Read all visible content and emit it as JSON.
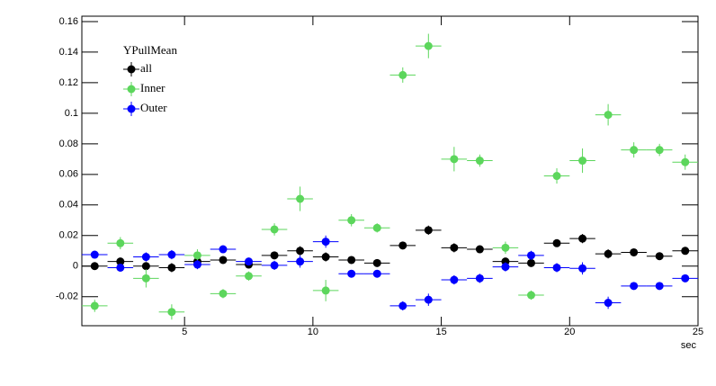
{
  "chart_data": {
    "type": "scatter",
    "xlabel": "sec",
    "legend_title": "YPullMean",
    "legend": "top-left",
    "x": [
      1.5,
      2.5,
      3.5,
      4.5,
      5.5,
      6.5,
      7.5,
      8.5,
      9.5,
      10.5,
      11.5,
      12.5,
      13.5,
      14.5,
      15.5,
      16.5,
      17.5,
      18.5,
      19.5,
      20.5,
      21.5,
      22.5,
      23.5,
      24.5
    ],
    "xerr": 0.5,
    "xlim": [
      1,
      25
    ],
    "xticks": [
      5,
      10,
      15,
      20,
      25
    ],
    "ylim": [
      -0.039,
      0.1635
    ],
    "yticks": [
      -0.02,
      0,
      0.02,
      0.04,
      0.06,
      0.08,
      0.1,
      0.12,
      0.14,
      0.16
    ],
    "series": [
      {
        "name": "all",
        "color": "#000000",
        "values": [
          0,
          0.003,
          0,
          -0.001,
          0.003,
          0.004,
          0.001,
          0.007,
          0.01,
          0.006,
          0.004,
          0.002,
          0.0135,
          0.0235,
          0.012,
          0.011,
          0.003,
          0.002,
          0.015,
          0.018,
          0.008,
          0.009,
          0.0065,
          0.01
        ],
        "errors": [
          0.002,
          0.002,
          0.002,
          0.003,
          0.003,
          0.002,
          0.002,
          0.002,
          0.003,
          0.003,
          0.002,
          0.002,
          0.002,
          0.003,
          0.003,
          0.002,
          0.002,
          0.002,
          0.002,
          0.003,
          0.003,
          0.002,
          0.002,
          0.002
        ]
      },
      {
        "name": "Inner",
        "color": "#5cd65c",
        "values": [
          -0.026,
          0.015,
          -0.008,
          -0.03,
          0.007,
          -0.018,
          -0.0065,
          0.024,
          0.044,
          -0.016,
          0.03,
          0.025,
          0.125,
          0.144,
          0.07,
          0.069,
          0.012,
          -0.019,
          0.059,
          0.069,
          0.099,
          0.076,
          0.076,
          0.068
        ],
        "errors": [
          0.004,
          0.004,
          0.006,
          0.005,
          0.004,
          0.003,
          0.003,
          0.004,
          0.008,
          0.007,
          0.004,
          0.003,
          0.005,
          0.008,
          0.008,
          0.004,
          0.004,
          0.003,
          0.005,
          0.008,
          0.007,
          0.005,
          0.004,
          0.005
        ]
      },
      {
        "name": "Outer",
        "color": "#0000ff",
        "values": [
          0.0075,
          -0.001,
          0.006,
          0.0075,
          0.001,
          0.011,
          0.003,
          0.0005,
          0.003,
          0.016,
          -0.005,
          -0.005,
          -0.026,
          -0.022,
          -0.009,
          -0.008,
          -0.0005,
          0.007,
          -0.001,
          -0.0015,
          -0.024,
          -0.013,
          -0.013,
          -0.008
        ],
        "errors": [
          0.002,
          0.002,
          0.003,
          0.003,
          0.003,
          0.002,
          0.002,
          0.003,
          0.004,
          0.004,
          0.002,
          0.002,
          0.003,
          0.004,
          0.003,
          0.003,
          0.003,
          0.003,
          0.003,
          0.004,
          0.004,
          0.002,
          0.002,
          0.002
        ]
      }
    ]
  }
}
